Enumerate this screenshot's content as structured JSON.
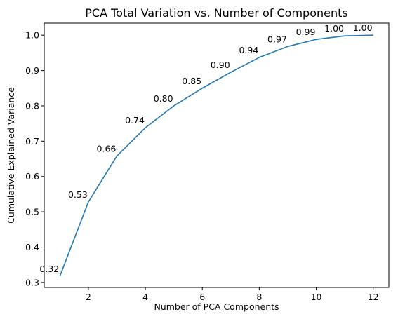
{
  "chart_data": {
    "type": "line",
    "title": "PCA Total Variation vs. Number of Components",
    "xlabel": "Number of PCA Components",
    "ylabel": "Cumulative Explained Variance",
    "x": [
      1,
      2,
      3,
      4,
      5,
      6,
      7,
      8,
      9,
      10,
      11,
      12
    ],
    "series": [
      {
        "values": [
          0.318,
          0.528,
          0.658,
          0.738,
          0.8,
          0.85,
          0.895,
          0.937,
          0.968,
          0.988,
          0.998,
          1.0
        ],
        "labels": [
          "0.32",
          "0.53",
          "0.66",
          "0.74",
          "0.80",
          "0.85",
          "0.90",
          "0.94",
          "0.97",
          "0.99",
          "1.00",
          "1.00"
        ]
      }
    ],
    "xlim": [
      0.45,
      12.55
    ],
    "ylim": [
      0.2859,
      1.0341
    ],
    "xticks": [
      2,
      4,
      6,
      8,
      10,
      12
    ],
    "xtick_labels": [
      "2",
      "4",
      "6",
      "8",
      "10",
      "12"
    ],
    "yticks": [
      0.3,
      0.4,
      0.5,
      0.6,
      0.7,
      0.8,
      0.9,
      1.0
    ],
    "ytick_labels": [
      "0.3",
      "0.4",
      "0.5",
      "0.6",
      "0.7",
      "0.8",
      "0.9",
      "1.0"
    ],
    "grid": false,
    "line_color": "#1f77b4"
  }
}
